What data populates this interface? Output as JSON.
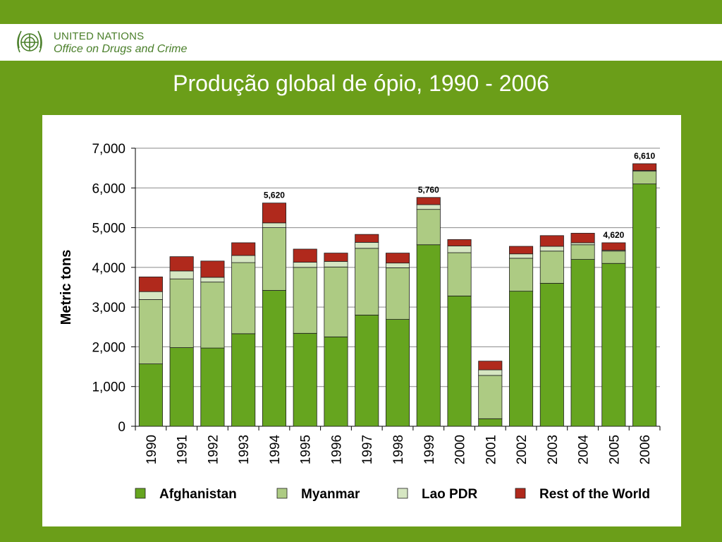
{
  "header": {
    "org_line1": "UNITED NATIONS",
    "org_line2": "Office on Drugs and Crime"
  },
  "slide_title": "Produção global de ópio, 1990 - 2006",
  "colors": {
    "background": "#6b9e19",
    "afghanistan": "#66a51f",
    "myanmar": "#adcb83",
    "lao": "#d6e6c2",
    "rest": "#b0291c"
  },
  "chart_data": {
    "type": "bar",
    "stacked": true,
    "title": "",
    "xlabel": "",
    "ylabel": "Metric tons",
    "ylim": [
      0,
      7000
    ],
    "yticks": [
      "0",
      "1,000",
      "2,000",
      "3,000",
      "4,000",
      "5,000",
      "6,000",
      "7,000"
    ],
    "grid": true,
    "legend_position": "bottom",
    "categories": [
      "1990",
      "1991",
      "1992",
      "1993",
      "1994",
      "1995",
      "1996",
      "1997",
      "1998",
      "1999",
      "2000",
      "2001",
      "2002",
      "2003",
      "2004",
      "2005",
      "2006"
    ],
    "series": [
      {
        "name": "Afghanistan",
        "color": "#66a51f",
        "values": [
          1570,
          1980,
          1970,
          2330,
          3420,
          2340,
          2250,
          2800,
          2690,
          4570,
          3280,
          190,
          3400,
          3600,
          4200,
          4100,
          6100
        ]
      },
      {
        "name": "Myanmar",
        "color": "#adcb83",
        "values": [
          1620,
          1730,
          1660,
          1790,
          1580,
          1660,
          1760,
          1680,
          1300,
          890,
          1090,
          1090,
          830,
          810,
          370,
          310,
          320
        ]
      },
      {
        "name": "Lao PDR",
        "color": "#d6e6c2",
        "values": [
          200,
          200,
          120,
          180,
          120,
          130,
          140,
          150,
          120,
          120,
          170,
          140,
          110,
          120,
          50,
          20,
          20
        ]
      },
      {
        "name": "Rest of the World",
        "color": "#b0291c",
        "values": [
          370,
          360,
          410,
          320,
          500,
          330,
          210,
          200,
          250,
          180,
          160,
          220,
          190,
          270,
          240,
          190,
          170
        ]
      }
    ],
    "data_labels": [
      {
        "category": "1994",
        "text": "5,620"
      },
      {
        "category": "1999",
        "text": "5,760"
      },
      {
        "category": "2005",
        "text": "4,620"
      },
      {
        "category": "2006",
        "text": "6,610"
      }
    ]
  }
}
